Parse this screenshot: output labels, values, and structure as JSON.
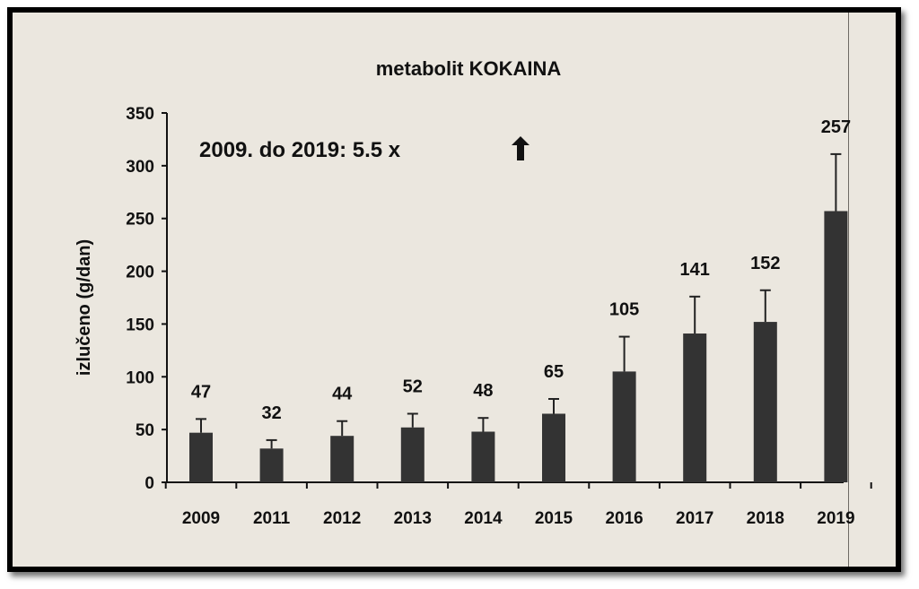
{
  "chart_data": {
    "type": "bar",
    "title": "metabolit KOKAINA",
    "xlabel": "",
    "ylabel": "izlučeno (g/dan)",
    "annotation": "2009. do 2019: 5.5 x",
    "annotation_icon": "up-arrow-icon",
    "categories": [
      "2009",
      "2011",
      "2012",
      "2013",
      "2014",
      "2015",
      "2016",
      "2017",
      "2018",
      "2019"
    ],
    "values": [
      47,
      32,
      44,
      52,
      48,
      65,
      105,
      141,
      152,
      257
    ],
    "error_upper": [
      60,
      40,
      58,
      65,
      61,
      79,
      138,
      176,
      182,
      311
    ],
    "data_labels": [
      "47",
      "32",
      "44",
      "52",
      "48",
      "65",
      "105",
      "141",
      "152",
      "257"
    ],
    "ylim": [
      0,
      350
    ],
    "yticks": [
      0,
      50,
      100,
      150,
      200,
      250,
      300,
      350
    ],
    "grid": false,
    "legend": "none",
    "bar_color": "#333333"
  }
}
